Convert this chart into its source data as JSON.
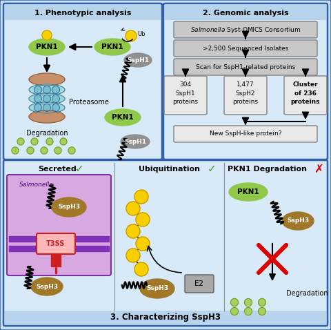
{
  "title": "3. Characterizing SspH3",
  "panel1_title": "1. Phenotypic analysis",
  "panel2_title": "2. Genomic analysis",
  "bg_outer": "#c8dff0",
  "panel_bg1": "#d8eaf8",
  "panel_bg2": "#d8eaf8",
  "panel_bg3": "#d8eaf8",
  "title_bar_color": "#b8d4ec",
  "box_gray": "#c8c8c8",
  "box_light": "#e8e8e8",
  "green_ellipse": "#90c84a",
  "gray_ellipse": "#909090",
  "brown_ellipse": "#a07828",
  "yellow_circle": "#f8d000",
  "light_green_dots": "#a8d060",
  "light_green_edge": "#70a030",
  "border_blue": "#3060a8",
  "genomic_boxes": [
    "Syst-OMICS Consortium",
    ">2,500 Sequenced Isolates",
    "Scan for SspH1-related proteins"
  ],
  "genomic_bottom": [
    "304\nSspH1\nproteins",
    "1,477\nSspH2\nproteins",
    "Cluster\nof 236\nproteins"
  ],
  "genomic_final": "New SspH-like protein?",
  "sal_purple_box": "#d8a8e0",
  "sal_purple_border": "#8030a0",
  "sal_bar_color": "#8030b8",
  "t3ss_box_color": "#ffb8b8",
  "t3ss_border": "#cc2020",
  "t3ss_stem": "#cc2020",
  "e2_box": "#a8a8a8",
  "red_x": "#dd0000",
  "arrow_color": "#000000"
}
